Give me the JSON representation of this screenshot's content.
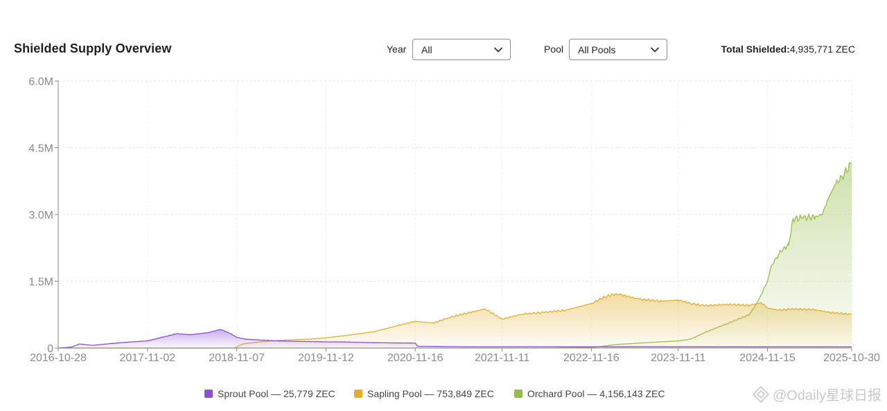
{
  "header": {
    "title": "Shielded Supply Overview",
    "year_label": "Year",
    "year_value": "All",
    "pool_label": "Pool",
    "pool_value": "All Pools",
    "total_label": "Total Shielded:",
    "total_value": "4,935,771 ZEC"
  },
  "legend": [
    {
      "label": "Sprout Pool — 25,779 ZEC",
      "color": "#8b4fd8"
    },
    {
      "label": "Sapling Pool — 753,849 ZEC",
      "color": "#e3ae2e"
    },
    {
      "label": "Orchard Pool — 4,156,143 ZEC",
      "color": "#94bd4a"
    }
  ],
  "watermark": "@Odaily星球日报",
  "chart_data": {
    "type": "area",
    "title": "",
    "xlabel": "",
    "ylabel": "",
    "ylim": [
      0,
      6000000
    ],
    "yticks": [
      0,
      1500000,
      3000000,
      4500000,
      6000000
    ],
    "ytick_labels": [
      "0",
      "1.5M",
      "3.0M",
      "4.5M",
      "6.0M"
    ],
    "xticks": [
      "2016-10-28",
      "2017-11-02",
      "2018-11-07",
      "2019-11-12",
      "2020-11-16",
      "2021-11-11",
      "2022-11-16",
      "2023-11-11",
      "2024-11-15",
      "2025-10-30"
    ],
    "xrange": [
      "2016-10-28",
      "2025-10-30"
    ],
    "grid": true,
    "legend_position": "bottom",
    "series": [
      {
        "name": "Sprout Pool",
        "color": "#8b4fd8",
        "x": [
          "2016-10-28",
          "2016-12-20",
          "2017-01-25",
          "2017-03-20",
          "2017-06-01",
          "2017-09-01",
          "2017-11-02",
          "2018-01-15",
          "2018-03-01",
          "2018-05-01",
          "2018-07-15",
          "2018-09-01",
          "2018-10-10",
          "2018-11-07",
          "2018-12-15",
          "2019-02-15",
          "2019-05-01",
          "2019-08-01",
          "2019-11-12",
          "2020-02-01",
          "2020-06-01",
          "2020-11-16",
          "2020-11-25",
          "2021-06-01",
          "2022-06-01",
          "2023-06-01",
          "2024-06-01",
          "2025-10-30"
        ],
        "y": [
          0,
          20000,
          90000,
          60000,
          100000,
          140000,
          160000,
          260000,
          320000,
          300000,
          350000,
          420000,
          330000,
          240000,
          200000,
          180000,
          160000,
          150000,
          140000,
          135000,
          120000,
          110000,
          40000,
          30000,
          30000,
          28000,
          27000,
          25779
        ]
      },
      {
        "name": "Sapling Pool",
        "color": "#e3ae2e",
        "x": [
          "2016-10-28",
          "2018-10-28",
          "2018-12-01",
          "2019-03-01",
          "2019-06-01",
          "2019-09-01",
          "2019-11-12",
          "2020-02-01",
          "2020-06-01",
          "2020-09-01",
          "2020-11-16",
          "2021-02-01",
          "2021-04-01",
          "2021-07-01",
          "2021-09-01",
          "2021-11-11",
          "2022-02-01",
          "2022-05-01",
          "2022-08-01",
          "2022-11-16",
          "2023-01-10",
          "2023-03-01",
          "2023-06-01",
          "2023-09-01",
          "2023-11-11",
          "2024-01-01",
          "2024-03-01",
          "2024-06-01",
          "2024-09-01",
          "2024-10-20",
          "2024-11-15",
          "2025-01-01",
          "2025-03-01",
          "2025-06-01",
          "2025-08-01",
          "2025-10-30"
        ],
        "y": [
          0,
          0,
          90000,
          150000,
          180000,
          200000,
          230000,
          280000,
          370000,
          500000,
          600000,
          560000,
          680000,
          800000,
          880000,
          650000,
          760000,
          800000,
          850000,
          1000000,
          1150000,
          1220000,
          1100000,
          1050000,
          1080000,
          1000000,
          950000,
          980000,
          960000,
          1020000,
          900000,
          850000,
          880000,
          860000,
          800000,
          753849
        ]
      },
      {
        "name": "Orchard Pool",
        "color": "#94bd4a",
        "x": [
          "2016-10-28",
          "2022-05-31",
          "2022-12-01",
          "2023-03-01",
          "2023-09-01",
          "2023-11-11",
          "2024-01-01",
          "2024-03-01",
          "2024-06-01",
          "2024-09-01",
          "2024-10-01",
          "2024-10-20",
          "2024-11-15",
          "2024-12-01",
          "2025-01-01",
          "2025-01-20",
          "2025-02-10",
          "2025-03-01",
          "2025-04-10",
          "2025-06-01",
          "2025-07-01",
          "2025-07-20",
          "2025-08-20",
          "2025-09-20",
          "2025-10-30"
        ],
        "y": [
          0,
          0,
          20000,
          80000,
          140000,
          160000,
          200000,
          350000,
          550000,
          750000,
          1000000,
          1200000,
          1500000,
          1850000,
          2100000,
          2250000,
          2300000,
          2900000,
          2920000,
          2950000,
          3000000,
          3300000,
          3650000,
          3850000,
          4156143
        ]
      }
    ]
  }
}
